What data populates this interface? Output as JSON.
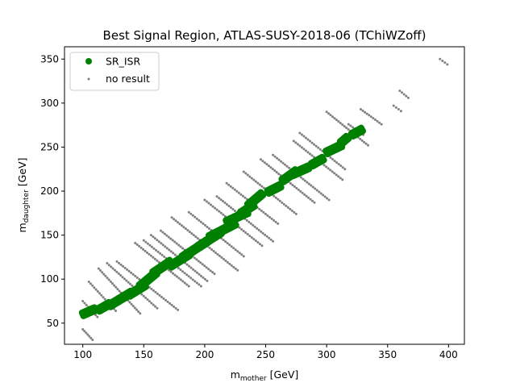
{
  "chart_data": {
    "type": "scatter",
    "title": "Best Signal Region, ATLAS-SUSY-2018-06 (TChiWZoff)",
    "xlabel": {
      "base": "m",
      "sub": "mother",
      "unit": " [GeV]"
    },
    "ylabel": {
      "base": "m",
      "sub": "daughter",
      "unit": " [GeV]"
    },
    "xlim": [
      85,
      413
    ],
    "ylim": [
      26,
      364
    ],
    "xticks": [
      100,
      150,
      200,
      250,
      300,
      350,
      400
    ],
    "yticks": [
      50,
      100,
      150,
      200,
      250,
      300,
      350
    ],
    "grid": false,
    "legend_position": "upper-left",
    "series": [
      {
        "name": "SR_ISR",
        "color": "#008000",
        "marker": "filled-circle",
        "clusters": [
          {
            "x": [
              100,
              110
            ],
            "y": [
              60,
              66
            ]
          },
          {
            "x": [
              113,
              122
            ],
            "y": [
              65,
              72
            ]
          },
          {
            "x": [
              122,
              140
            ],
            "y": [
              70,
              85
            ]
          },
          {
            "x": [
              138,
              151
            ],
            "y": [
              82,
              93
            ]
          },
          {
            "x": [
              147,
              160
            ],
            "y": [
              92,
              107
            ]
          },
          {
            "x": [
              158,
              172
            ],
            "y": [
              107,
              120
            ]
          },
          {
            "x": [
              172,
              187
            ],
            "y": [
              115,
              128
            ]
          },
          {
            "x": [
              182,
              202
            ],
            "y": [
              125,
              143
            ]
          },
          {
            "x": [
              195,
              213
            ],
            "y": [
              137,
              153
            ]
          },
          {
            "x": [
              204,
              225
            ],
            "y": [
              148,
              163
            ]
          },
          {
            "x": [
              218,
              235
            ],
            "y": [
              165,
              176
            ]
          },
          {
            "x": [
              230,
              240
            ],
            "y": [
              175,
              184
            ]
          },
          {
            "x": [
              236,
              247
            ],
            "y": [
              184,
              197
            ]
          },
          {
            "x": [
              252,
              262
            ],
            "y": [
              199,
              206
            ]
          },
          {
            "x": [
              264,
              275
            ],
            "y": [
              212,
              223
            ]
          },
          {
            "x": [
              272,
              285
            ],
            "y": [
              219,
              227
            ]
          },
          {
            "x": [
              288,
              297
            ],
            "y": [
              230,
              237
            ]
          },
          {
            "x": [
              300,
              312
            ],
            "y": [
              244,
              252
            ]
          },
          {
            "x": [
              312,
              317
            ],
            "y": [
              255,
              261
            ]
          },
          {
            "x": [
              321,
              329
            ],
            "y": [
              264,
              270
            ]
          }
        ]
      },
      {
        "name": "no result",
        "color": "#808080",
        "marker": "small-dot",
        "lines": [
          {
            "x": [
              100,
              108
            ],
            "y": [
              43,
              31
            ]
          },
          {
            "x": [
              100,
              112
            ],
            "y": [
              75,
              57
            ]
          },
          {
            "x": [
              105,
              127
            ],
            "y": [
              97,
              64
            ]
          },
          {
            "x": [
              113,
              147
            ],
            "y": [
              112,
              61
            ]
          },
          {
            "x": [
              120,
              161
            ],
            "y": [
              118,
              67
            ]
          },
          {
            "x": [
              128,
              178
            ],
            "y": [
              120,
              65
            ]
          },
          {
            "x": [
              143,
              187
            ],
            "y": [
              141,
              92
            ]
          },
          {
            "x": [
              150,
              197
            ],
            "y": [
              144,
              92
            ]
          },
          {
            "x": [
              156,
              202
            ],
            "y": [
              150,
              98
            ]
          },
          {
            "x": [
              164,
              208
            ],
            "y": [
              155,
              106
            ]
          },
          {
            "x": [
              173,
              227
            ],
            "y": [
              170,
              110
            ]
          },
          {
            "x": [
              187,
              232
            ],
            "y": [
              176,
              126
            ]
          },
          {
            "x": [
              200,
              247
            ],
            "y": [
              190,
              138
            ]
          },
          {
            "x": [
              210,
              256
            ],
            "y": [
              194,
              143
            ]
          },
          {
            "x": [
              218,
              260
            ],
            "y": [
              209,
              163
            ]
          },
          {
            "x": [
              232,
              275
            ],
            "y": [
              222,
              174
            ]
          },
          {
            "x": [
              246,
              290
            ],
            "y": [
              236,
              187
            ]
          },
          {
            "x": [
              256,
              302
            ],
            "y": [
              241,
              190
            ]
          },
          {
            "x": [
              273,
              313
            ],
            "y": [
              257,
              213
            ]
          },
          {
            "x": [
              278,
              315
            ],
            "y": [
              266,
              225
            ]
          },
          {
            "x": [
              300,
              334
            ],
            "y": [
              290,
              252
            ]
          },
          {
            "x": [
              328,
              345
            ],
            "y": [
              293,
              276
            ]
          },
          {
            "x": [
              318,
              330
            ],
            "y": [
              276,
              264
            ]
          },
          {
            "x": [
              360,
              367
            ],
            "y": [
              314,
              306
            ]
          },
          {
            "x": [
              355,
              361
            ],
            "y": [
              297,
              291
            ]
          },
          {
            "x": [
              393,
              399
            ],
            "y": [
              350,
              344
            ]
          }
        ]
      }
    ]
  }
}
